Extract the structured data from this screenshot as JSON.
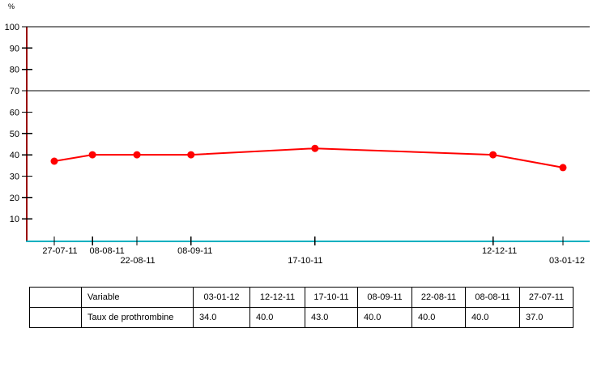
{
  "chart_data": {
    "type": "line",
    "title": "",
    "xlabel": "",
    "ylabel": "%",
    "ylim": [
      0,
      100
    ],
    "yticks": [
      10,
      20,
      30,
      40,
      50,
      60,
      70,
      80,
      90,
      100
    ],
    "reference_lines": [
      70,
      100
    ],
    "grid": "off",
    "legend": "none",
    "categories": [
      "27-07-11",
      "08-08-11",
      "22-08-11",
      "08-09-11",
      "17-10-11",
      "12-12-11",
      "03-01-12"
    ],
    "x_days_from_start": [
      0,
      12,
      26,
      43,
      82,
      138,
      160
    ],
    "x_label_rows": [
      1,
      1,
      2,
      1,
      2,
      1,
      2
    ],
    "series": [
      {
        "name": "Taux de prothrombine",
        "color": "#ff0000",
        "marker": "circle",
        "values": [
          37.0,
          40.0,
          40.0,
          40.0,
          43.0,
          40.0,
          34.0
        ]
      }
    ],
    "axis_colors": {
      "y_axis": "#990000",
      "x_axis": "#00b0c0",
      "reference_line": "#000000",
      "tick": "#000000"
    }
  },
  "table": {
    "header": [
      "",
      "Variable",
      "03-01-12",
      "12-12-11",
      "17-10-11",
      "08-09-11",
      "22-08-11",
      "08-08-11",
      "27-07-11"
    ],
    "rows": [
      [
        "",
        "Taux de prothrombine",
        "34.0",
        "40.0",
        "43.0",
        "40.0",
        "40.0",
        "40.0",
        "37.0"
      ]
    ]
  }
}
